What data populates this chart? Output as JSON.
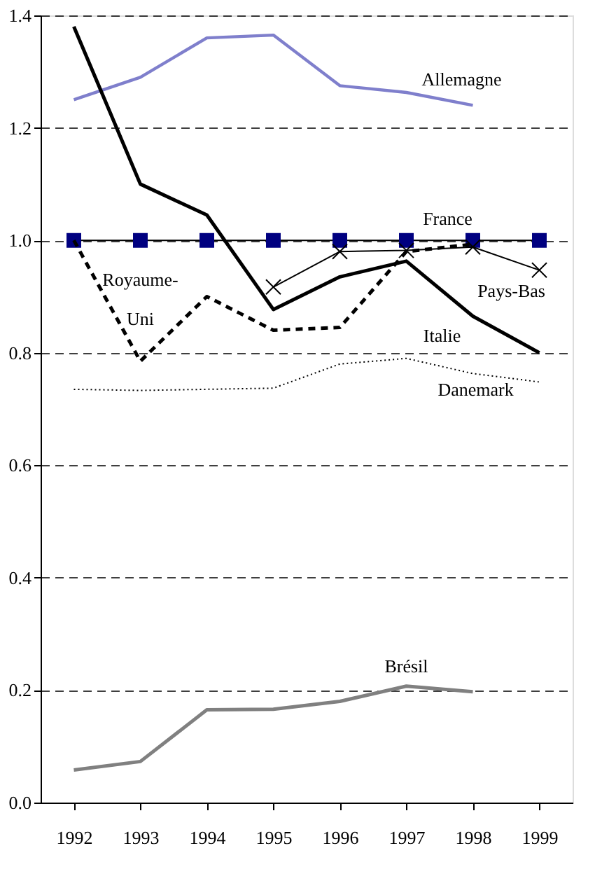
{
  "chart_data": {
    "type": "line",
    "categories": [
      "1992",
      "1993",
      "1994",
      "1995",
      "1996",
      "1997",
      "1998",
      "1999"
    ],
    "series": [
      {
        "name": "Allemagne",
        "color": "#7f7fcc",
        "line_style": "solid",
        "marker": "none",
        "values": [
          1.25,
          1.29,
          1.36,
          1.365,
          1.275,
          1.263,
          1.24,
          null
        ]
      },
      {
        "name": "Italie",
        "color": "#000000",
        "line_style": "solid",
        "marker": "none",
        "values": [
          1.38,
          1.1,
          1.045,
          0.877,
          0.935,
          0.963,
          0.865,
          0.8
        ]
      },
      {
        "name": "France",
        "color": "#000080",
        "line_style": "solid",
        "marker": "square",
        "values": [
          1.0,
          1.0,
          1.0,
          1.0,
          1.0,
          1.0,
          1.0,
          1.0
        ]
      },
      {
        "name": "Royaume-Uni",
        "color": "#000000",
        "line_style": "dashed",
        "marker": "none",
        "values": [
          1.0,
          0.785,
          0.9,
          0.84,
          0.845,
          0.98,
          0.993,
          null
        ]
      },
      {
        "name": "Pays-Bas",
        "color": "#000000",
        "line_style": "solid",
        "marker": "cross",
        "values": [
          null,
          null,
          null,
          0.917,
          0.98,
          0.982,
          0.988,
          0.947
        ]
      },
      {
        "name": "Danemark",
        "color": "#000000",
        "line_style": "dotted",
        "marker": "none",
        "values": [
          0.735,
          0.733,
          0.735,
          0.737,
          0.78,
          0.79,
          0.763,
          0.748
        ]
      },
      {
        "name": "Brésil",
        "color": "#808080",
        "line_style": "solid",
        "marker": "none",
        "values": [
          0.058,
          0.073,
          0.165,
          0.166,
          0.18,
          0.207,
          0.197,
          null
        ]
      }
    ],
    "ylim": [
      0,
      1.4
    ],
    "yticks": [
      {
        "value": 0,
        "label": "0.0"
      },
      {
        "value": 0.2,
        "label": "0.2"
      },
      {
        "value": 0.4,
        "label": "0.4"
      },
      {
        "value": 0.6,
        "label": "0.6"
      },
      {
        "value": 0.8,
        "label": "0.8"
      },
      {
        "value": 1.0,
        "label": "1.0"
      },
      {
        "value": 1.2,
        "label": "1.2"
      },
      {
        "value": 1.4,
        "label": "1.4"
      }
    ],
    "grid": "y"
  }
}
